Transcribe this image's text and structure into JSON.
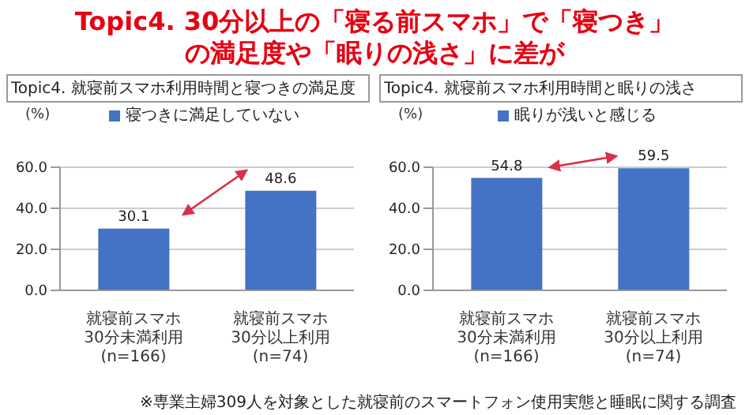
{
  "chart_data": [
    {
      "type": "bar",
      "title": "Topic4.  30分以上の「寝る前スマホ」で「寝つき」の満足度や「眠りの浅さ」に差が",
      "subtitle": "Topic4.  就寝前スマホ利用時間と寝つきの満足度",
      "ylabel": "(%)",
      "categories": [
        "就寝前スマホ30分未満利用(n=166)",
        "就寝前スマホ30分以上利用(n=74)"
      ],
      "series": [
        {
          "name": "寝つきに満足していない",
          "color": "#4472c4",
          "values": [
            30.1,
            48.6
          ]
        }
      ],
      "ylim": [
        0,
        60
      ],
      "yticks": [
        {
          "value": 0,
          "label": "0.0"
        },
        {
          "value": 20,
          "label": "20.0"
        },
        {
          "value": 40,
          "label": "40.0"
        },
        {
          "value": 60,
          "label": "60.0"
        }
      ],
      "grid": "y",
      "legend": "top",
      "data_labels": true
    },
    {
      "type": "bar",
      "subtitle": "Topic4.  就寝前スマホ利用時間と眠りの浅さ",
      "ylabel": "(%)",
      "categories": [
        "就寝前スマホ30分未満利用(n=166)",
        "就寝前スマホ30分以上利用(n=74)"
      ],
      "series": [
        {
          "name": "眠りが浅いと感じる",
          "color": "#4472c4",
          "values": [
            54.8,
            59.5
          ]
        }
      ],
      "ylim": [
        0,
        60
      ],
      "yticks": [
        {
          "value": 0,
          "label": "0.0"
        },
        {
          "value": 20,
          "label": "20.0"
        },
        {
          "value": 40,
          "label": "40.0"
        },
        {
          "value": 60,
          "label": "60.0"
        }
      ],
      "grid": "y",
      "legend": "top",
      "data_labels": true,
      "annotations": [
        "※専業主婦309人を対象とした就寝前のスマートフォン使用実態と睡眠に関する調査"
      ]
    }
  ]
}
